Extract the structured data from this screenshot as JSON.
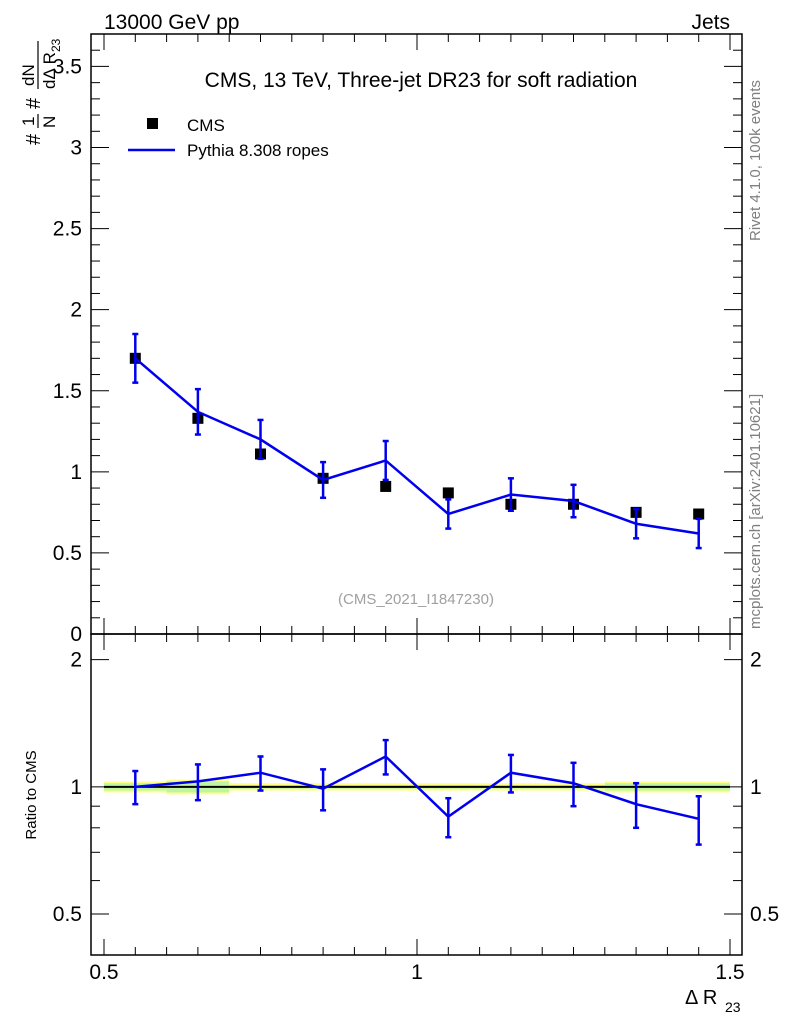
{
  "header": {
    "left": "13000 GeV pp",
    "right": "Jets"
  },
  "side": {
    "rivet": "Rivet 4.1.0,  100k events",
    "mcplots": "mcplots.cern.ch [arXiv:2401.10621]"
  },
  "chart_data": [
    {
      "type": "scatter",
      "panel": "main",
      "title": "CMS, 13 TeV, Three-jet DR23 for soft radiation",
      "watermark": "(CMS_2021_I1847230)",
      "ylabel": "#frac{1}{N} #frac{dN}{d#Delta R_{23}}",
      "ylabel_parts": [
        "#",
        "1",
        "N",
        "#",
        "dN",
        "dΔ R",
        "23"
      ],
      "xlim": [
        0.5,
        1.5
      ],
      "ylim": [
        0,
        3.7
      ],
      "yticks": [
        0,
        0.5,
        1,
        1.5,
        2,
        2.5,
        3,
        3.5
      ],
      "ytick_labels": [
        "0",
        "0.5",
        "1",
        "1.5",
        "2",
        "2.5",
        "3",
        "3.5"
      ],
      "legend": [
        {
          "label": "CMS",
          "marker": "square",
          "color": "#000000"
        },
        {
          "label": "Pythia 8.308 ropes",
          "marker": "line",
          "color": "#0000ee"
        }
      ],
      "series": [
        {
          "name": "CMS",
          "x": [
            0.55,
            0.65,
            0.75,
            0.85,
            0.95,
            1.05,
            1.15,
            1.25,
            1.35,
            1.45
          ],
          "y": [
            1.7,
            1.33,
            1.11,
            0.96,
            0.91,
            0.87,
            0.8,
            0.8,
            0.75,
            0.74
          ],
          "yerr": [
            0.02,
            0.02,
            0.02,
            0.02,
            0.02,
            0.02,
            0.02,
            0.02,
            0.02,
            0.02
          ]
        },
        {
          "name": "Pythia 8.308 ropes",
          "x": [
            0.55,
            0.65,
            0.75,
            0.85,
            0.95,
            1.05,
            1.15,
            1.25,
            1.35,
            1.45
          ],
          "y": [
            1.7,
            1.37,
            1.2,
            0.95,
            1.07,
            0.74,
            0.86,
            0.82,
            0.68,
            0.62
          ],
          "yerr": [
            0.15,
            0.14,
            0.12,
            0.11,
            0.12,
            0.09,
            0.1,
            0.1,
            0.09,
            0.09
          ]
        }
      ]
    },
    {
      "type": "line",
      "panel": "ratio",
      "ylabel": "Ratio to CMS",
      "xlabel": "Δ R",
      "xlabel_sub": "23",
      "xlim": [
        0.5,
        1.5
      ],
      "ylim": [
        0.4,
        2.3
      ],
      "yscale": "log",
      "yticks": [
        0.5,
        1,
        2
      ],
      "ytick_labels": [
        "0.5",
        "1",
        "2"
      ],
      "xticks": [
        0.5,
        1,
        1.5
      ],
      "xtick_labels": [
        "0.5",
        "1",
        "1.5"
      ],
      "band": {
        "name": "CMS uncertainty",
        "x": [
          0.55,
          0.65,
          0.75,
          0.85,
          0.95,
          1.05,
          1.15,
          1.25,
          1.35,
          1.45
        ],
        "lo": [
          0.97,
          0.96,
          0.98,
          0.98,
          0.98,
          0.98,
          0.98,
          0.98,
          0.97,
          0.97
        ],
        "hi": [
          1.03,
          1.04,
          1.02,
          1.02,
          1.02,
          1.02,
          1.02,
          1.02,
          1.03,
          1.03
        ]
      },
      "series": [
        {
          "name": "Pythia 8.308 ropes / CMS",
          "x": [
            0.55,
            0.65,
            0.75,
            0.85,
            0.95,
            1.05,
            1.15,
            1.25,
            1.35,
            1.45
          ],
          "y": [
            1.0,
            1.03,
            1.08,
            0.99,
            1.18,
            0.85,
            1.08,
            1.02,
            0.91,
            0.84
          ],
          "yerr": [
            0.09,
            0.1,
            0.1,
            0.11,
            0.11,
            0.09,
            0.11,
            0.12,
            0.11,
            0.11
          ]
        }
      ]
    }
  ]
}
